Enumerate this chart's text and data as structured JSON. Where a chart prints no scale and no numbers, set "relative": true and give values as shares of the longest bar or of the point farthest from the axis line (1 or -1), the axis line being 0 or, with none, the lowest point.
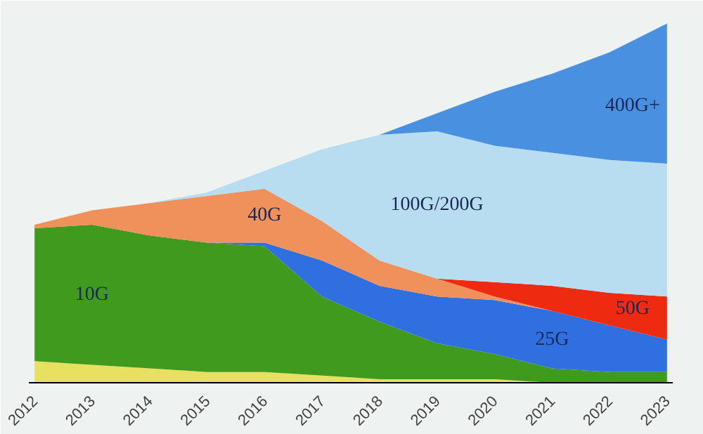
{
  "chart_data": {
    "type": "area",
    "stacked": true,
    "relative": true,
    "grid": false,
    "legend": false,
    "categories": [
      "2012",
      "2013",
      "2014",
      "2015",
      "2016",
      "2017",
      "2018",
      "2019",
      "2020",
      "2021",
      "2022",
      "2023"
    ],
    "series": [
      {
        "color": "#e8e060",
        "values": [
          0.06,
          0.05,
          0.04,
          0.03,
          0.03,
          0.02,
          0.01,
          0.01,
          0.01,
          0,
          null,
          null
        ]
      },
      {
        "name": "10G",
        "color": "#3f9a1e",
        "values": [
          0.37,
          0.39,
          0.37,
          0.36,
          0.35,
          0.22,
          0.16,
          0.1,
          0.07,
          0.04,
          0.03,
          0.03
        ]
      },
      {
        "name": "25G",
        "color": "#2f6fe0",
        "values": [
          null,
          null,
          null,
          0,
          0.01,
          0.1,
          0.1,
          0.13,
          0.15,
          0.16,
          0.13,
          0.09
        ]
      },
      {
        "name": "40G",
        "color": "#f0905a",
        "values": [
          0.01,
          0.04,
          0.09,
          0.13,
          0.15,
          0.11,
          0.07,
          0.05,
          0.01,
          0,
          null,
          null
        ]
      },
      {
        "name": "50G",
        "color": "#ee2a10",
        "values": [
          null,
          null,
          null,
          null,
          null,
          null,
          null,
          0,
          0.04,
          0.07,
          0.09,
          0.12
        ]
      },
      {
        "name": "100G/200G",
        "color": "#b8dcf0",
        "values": [
          null,
          null,
          0,
          0.01,
          0.05,
          0.2,
          0.35,
          0.41,
          0.38,
          0.37,
          0.37,
          0.37
        ]
      },
      {
        "name": "400G+",
        "color": "#4a90e0",
        "values": [
          null,
          null,
          null,
          null,
          null,
          null,
          0,
          0.05,
          0.15,
          0.22,
          0.3,
          0.39
        ]
      }
    ]
  }
}
